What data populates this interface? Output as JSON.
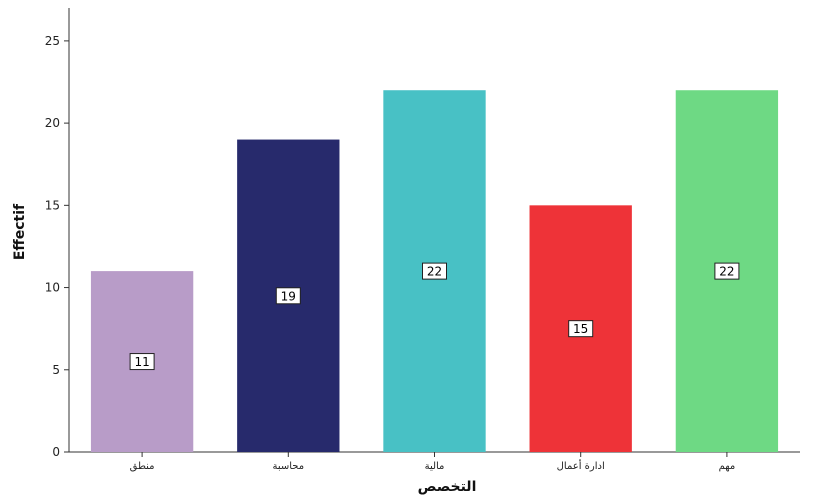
{
  "chart_data": {
    "type": "bar",
    "categories": [
      "منطق",
      "محاسبة",
      "مالية",
      "ادارة أعمال",
      "مهم"
    ],
    "values": [
      11,
      19,
      22,
      15,
      22
    ],
    "colors": [
      "#b89cc8",
      "#272a6c",
      "#48c1c5",
      "#ee3338",
      "#6ed984"
    ],
    "data_labels": [
      "11",
      "19",
      "22",
      "15",
      "22"
    ],
    "xlabel": "التخصص",
    "ylabel": "Effectif",
    "ylim": [
      0,
      27
    ],
    "yticks": [
      0,
      5,
      10,
      15,
      20,
      25
    ],
    "grid": false,
    "legend": "none"
  }
}
